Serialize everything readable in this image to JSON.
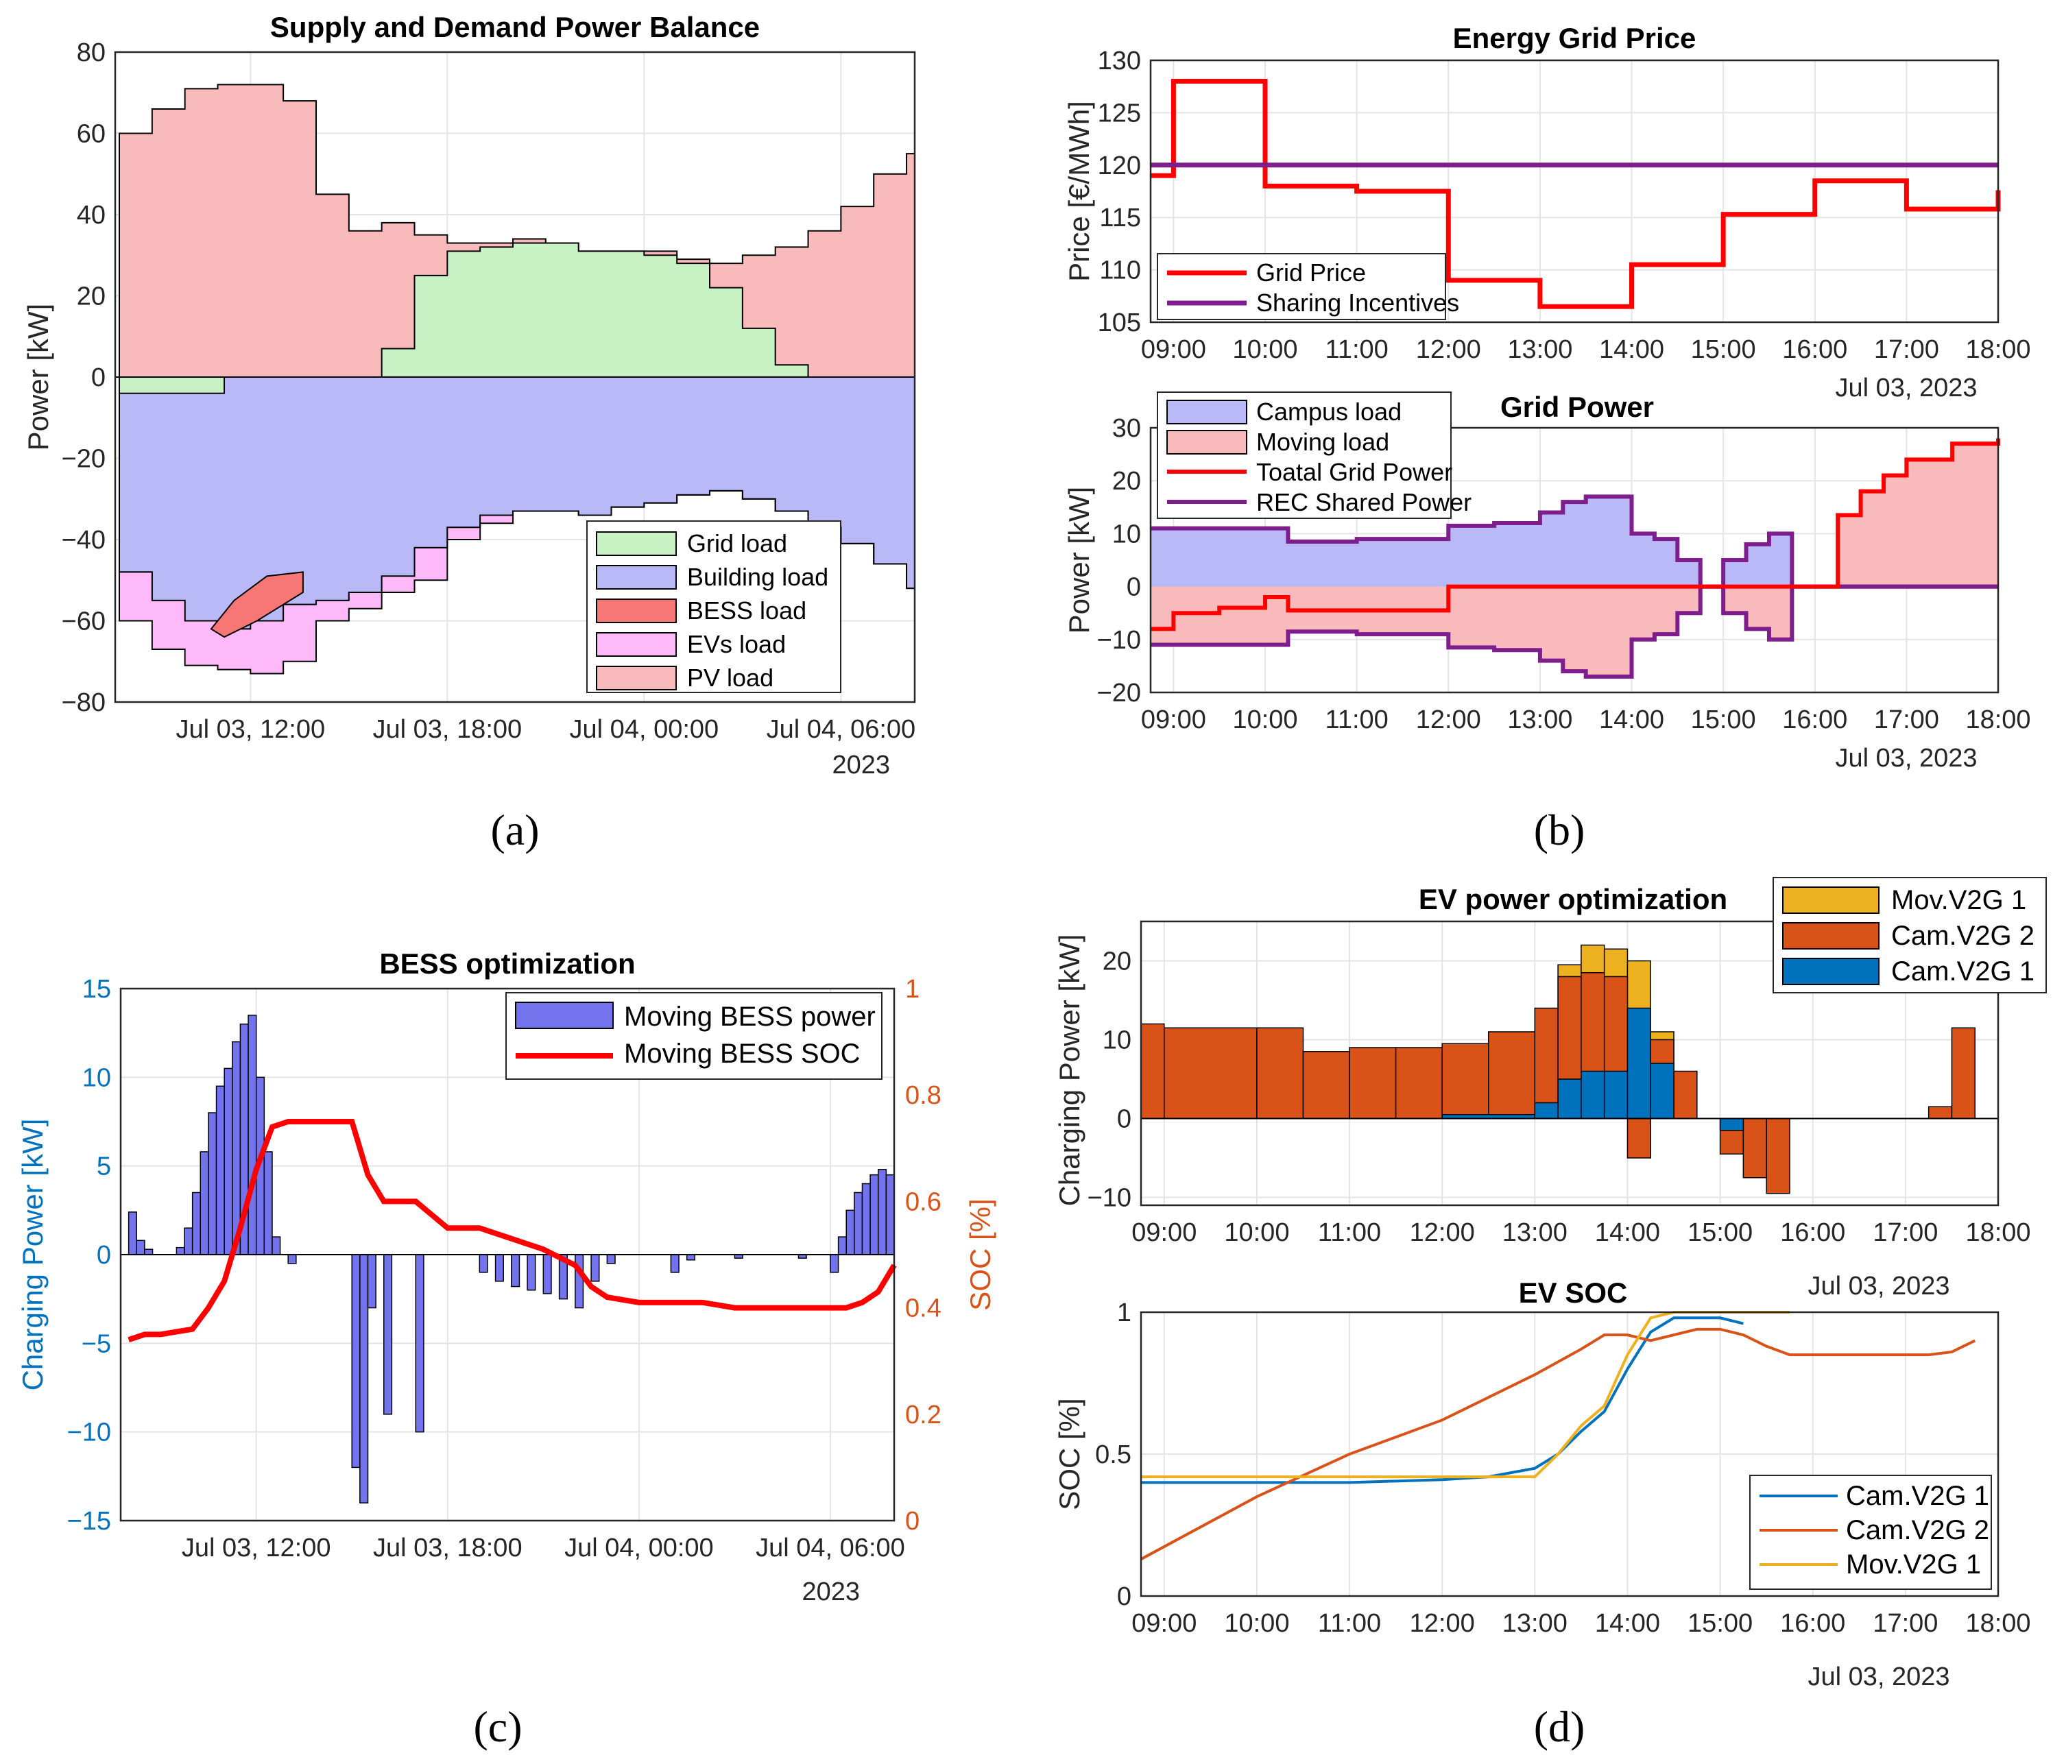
{
  "panels": {
    "a": "(a)",
    "b": "(b)",
    "c": "(c)",
    "d": "(d)"
  },
  "year_label": "2023",
  "date_label": "Jul 03, 2023",
  "chart_data": [
    {
      "id": "a",
      "type": "area",
      "title": "Supply and Demand Power Balance",
      "ylabel": "Power [kW]",
      "ylim": [
        -80,
        80
      ],
      "yticks": [
        "80",
        "60",
        "40",
        "20",
        "0",
        "−20",
        "−40",
        "−60",
        "−80"
      ],
      "xticks": [
        "Jul 03, 12:00",
        "Jul 03, 18:00",
        "Jul 04, 00:00",
        "Jul 04, 06:00"
      ],
      "x_hours": [
        8,
        9,
        10,
        11,
        12,
        13,
        14,
        15,
        16,
        17,
        18,
        19,
        20,
        21,
        22,
        23,
        24,
        25,
        26,
        27,
        28,
        29,
        30,
        31,
        32
      ],
      "legend": [
        "Grid load",
        "Building load",
        "BESS load",
        "EVs load",
        "PV load"
      ],
      "colors": {
        "grid": "#c8f2c4",
        "building": "#b9b9f8",
        "bess": "#f77676",
        "evs": "#fdb9f8",
        "pv": "#f8baba"
      },
      "series": [
        {
          "name": "PV load",
          "values": [
            60,
            66,
            71,
            72,
            72,
            68,
            45,
            36,
            38,
            35,
            33,
            33,
            34,
            33,
            31,
            31,
            31,
            29,
            28,
            30,
            32,
            36,
            42,
            50,
            55
          ]
        },
        {
          "name": "Grid load",
          "values": [
            0,
            0,
            0,
            0,
            0,
            0,
            0,
            0,
            7,
            25,
            31,
            32,
            33,
            33,
            31,
            31,
            30,
            28,
            22,
            12,
            3,
            0,
            0,
            0,
            0
          ]
        },
        {
          "name": "Building load",
          "values": [
            -48,
            -55,
            -60,
            -62,
            -60,
            -56,
            -55,
            -53,
            -49,
            -42,
            -37,
            -34,
            -33,
            -33,
            -34,
            -32,
            -31,
            -29,
            -28,
            -30,
            -33,
            -37,
            -41,
            -46,
            -52
          ]
        },
        {
          "name": "EVs load",
          "values": [
            -60,
            -67,
            -71,
            -72,
            -73,
            -70,
            -60,
            -57,
            -53,
            -50,
            -40,
            -36,
            -33,
            -33,
            -34,
            -32,
            -31,
            -29,
            -28,
            -30,
            -33,
            -37,
            -41,
            -46,
            -52
          ]
        }
      ]
    },
    {
      "id": "b1",
      "type": "line",
      "title": "Energy Grid Price",
      "ylabel": "Price [€/MWh]",
      "ylim": [
        105,
        130
      ],
      "yticks": [
        "130",
        "125",
        "120",
        "115",
        "110",
        "105"
      ],
      "xticks": [
        "09:00",
        "10:00",
        "11:00",
        "12:00",
        "13:00",
        "14:00",
        "15:00",
        "16:00",
        "17:00",
        "18:00"
      ],
      "legend": [
        "Grid Price",
        "Sharing Incentives"
      ],
      "series": [
        {
          "name": "Grid Price",
          "x": [
            8.75,
            9,
            10,
            10,
            11,
            11,
            12,
            12,
            13,
            13,
            14,
            14,
            15,
            15,
            16,
            16,
            17,
            17,
            18
          ],
          "values": [
            119,
            128,
            128,
            118,
            118,
            117.5,
            117.5,
            109,
            109,
            106.5,
            106.5,
            110.5,
            110.5,
            115.3,
            115.3,
            118.5,
            118.5,
            115.8,
            117.6
          ]
        },
        {
          "name": "Sharing Incentives",
          "x": [
            8.75,
            18
          ],
          "values": [
            120,
            120
          ]
        }
      ]
    },
    {
      "id": "b2",
      "type": "area",
      "title": "Grid Power",
      "ylabel": "Power [kW]",
      "ylim": [
        -20,
        30
      ],
      "yticks": [
        "30",
        "20",
        "10",
        "0",
        "−10",
        "−20"
      ],
      "xticks": [
        "09:00",
        "10:00",
        "11:00",
        "12:00",
        "13:00",
        "14:00",
        "15:00",
        "16:00",
        "17:00",
        "18:00"
      ],
      "legend": [
        "Campus load",
        "Moving load",
        "Toatal Grid Power",
        "REC Shared Power"
      ],
      "series": [
        {
          "name": "REC Shared Power",
          "x": [
            8.75,
            9,
            10,
            10.25,
            11,
            12,
            12.5,
            13,
            13.25,
            13.5,
            14,
            14.25,
            14.5,
            14.75,
            15,
            15.25,
            15.5,
            15.75,
            16,
            17,
            18
          ],
          "values": [
            11,
            11,
            11,
            8.5,
            9,
            11.5,
            12,
            14,
            16,
            17,
            10,
            9,
            5,
            0,
            5,
            8,
            10,
            0,
            0,
            0,
            0
          ]
        },
        {
          "name": "Toatal Grid Power",
          "x": [
            8.75,
            9,
            9.5,
            10,
            10.25,
            12,
            16,
            16.25,
            16.5,
            16.75,
            17,
            17.5,
            18
          ],
          "values": [
            -8,
            -5,
            -4,
            -2,
            -4.5,
            0,
            0,
            13.5,
            18,
            21,
            24,
            27,
            28
          ]
        }
      ]
    },
    {
      "id": "c",
      "type": "bar",
      "title": "BESS optimization",
      "ylabel": "Charging Power [kW]",
      "y2label": "SOC [%]",
      "ylim": [
        -15,
        15
      ],
      "y2lim": [
        0,
        1
      ],
      "yticks": [
        "15",
        "10",
        "5",
        "0",
        "−5",
        "−10",
        "−15"
      ],
      "y2ticks": [
        "1",
        "0.8",
        "0.6",
        "0.4",
        "0.2",
        "0"
      ],
      "xticks": [
        "Jul 03, 12:00",
        "Jul 03, 18:00",
        "Jul 04, 00:00",
        "Jul 04, 06:00"
      ],
      "legend": [
        "Moving BESS power",
        "Moving BESS SOC"
      ],
      "series": [
        {
          "name": "Moving BESS power",
          "x": [
            8,
            8.25,
            8.5,
            9.5,
            9.75,
            10,
            10.25,
            10.5,
            10.75,
            11,
            11.25,
            11.5,
            11.75,
            12,
            12.25,
            12.5,
            12.75,
            13,
            13.25,
            15,
            15.25,
            15.5,
            16,
            17,
            17.25,
            17.5,
            19,
            19.5,
            20,
            20.5,
            21,
            21.5,
            22,
            22.5,
            23,
            25,
            25.5,
            27,
            29,
            30,
            30.25,
            30.5,
            30.75,
            31,
            31.25,
            31.5,
            31.75
          ],
          "values": [
            2.4,
            0.8,
            0.3,
            0.4,
            1.5,
            3.5,
            5.8,
            8,
            9.5,
            10.5,
            12,
            13,
            13.5,
            10,
            5.8,
            1,
            0,
            -0.5,
            0,
            -12,
            -14,
            -3,
            -9,
            -10,
            0,
            0,
            -1,
            -1.5,
            -1.8,
            -2,
            -2.2,
            -2.5,
            -3,
            -1.5,
            -0.5,
            -1,
            -0.3,
            -0.2,
            -0.2,
            -1,
            1,
            2.5,
            3.5,
            4,
            4.5,
            4.8,
            4.5
          ]
        },
        {
          "name": "Moving BESS SOC",
          "x": [
            8,
            8.5,
            9,
            10,
            10.5,
            11,
            11.5,
            12,
            12.5,
            13,
            14,
            15,
            15.5,
            16,
            16.5,
            17,
            18,
            19,
            20,
            21,
            22,
            22.5,
            23,
            24,
            25,
            26,
            27,
            28,
            29,
            30,
            30.5,
            31,
            31.5,
            32
          ],
          "values": [
            0.34,
            0.35,
            0.35,
            0.36,
            0.4,
            0.45,
            0.55,
            0.66,
            0.74,
            0.75,
            0.75,
            0.75,
            0.65,
            0.6,
            0.6,
            0.6,
            0.55,
            0.55,
            0.53,
            0.51,
            0.48,
            0.44,
            0.42,
            0.41,
            0.41,
            0.41,
            0.4,
            0.4,
            0.4,
            0.4,
            0.4,
            0.41,
            0.43,
            0.48
          ]
        }
      ]
    },
    {
      "id": "d1",
      "type": "bar",
      "title": "EV power optimization",
      "ylabel": "Charging Power [kW]",
      "ylim": [
        -10,
        25
      ],
      "yticks": [
        "20",
        "10",
        "0",
        "−10"
      ],
      "xticks": [
        "09:00",
        "10:00",
        "11:00",
        "12:00",
        "13:00",
        "14:00",
        "15:00",
        "16:00",
        "17:00",
        "18:00"
      ],
      "legend": [
        "Mov.V2G 1",
        "Cam.V2G 2",
        "Cam.V2G 1"
      ],
      "series": [
        {
          "name": "Cam.V2G 1",
          "x": [
            8.75,
            12,
            13,
            13.25,
            13.5,
            13.75,
            14,
            14.25,
            14.5,
            15,
            15.25
          ],
          "values": [
            0,
            0.5,
            2,
            5,
            6,
            6,
            14,
            7,
            0,
            -1.5,
            0
          ]
        },
        {
          "name": "Cam.V2G 2",
          "x": [
            8.75,
            9,
            10,
            10.5,
            11,
            11.5,
            12,
            12.5,
            13,
            13.25,
            13.5,
            13.75,
            14,
            14.25,
            14.5,
            14.75,
            15,
            15.25,
            15.5,
            15.75,
            17.25,
            17.5
          ],
          "values": [
            12,
            11.5,
            11.5,
            8.5,
            9,
            9,
            9.5,
            11,
            14,
            18,
            18.5,
            18,
            -5,
            10,
            6,
            0,
            -4.5,
            -7.5,
            -9.5,
            0,
            1.5,
            11.5
          ]
        },
        {
          "name": "Mov.V2G 1",
          "x": [
            13.25,
            13.5,
            13.75,
            14,
            14.25
          ],
          "values": [
            19.5,
            22,
            21.5,
            20,
            11
          ]
        }
      ]
    },
    {
      "id": "d2",
      "type": "line",
      "title": "EV SOC",
      "ylabel": "SOC [%]",
      "ylim": [
        0,
        1
      ],
      "yticks": [
        "1",
        "0.5",
        "0"
      ],
      "xticks": [
        "09:00",
        "10:00",
        "11:00",
        "12:00",
        "13:00",
        "14:00",
        "15:00",
        "16:00",
        "17:00",
        "18:00"
      ],
      "legend": [
        "Cam.V2G 1",
        "Cam.V2G 2",
        "Mov.V2G 1"
      ],
      "series": [
        {
          "name": "Cam.V2G 1",
          "x": [
            8.75,
            10,
            11,
            12,
            12.5,
            13,
            13.25,
            13.5,
            13.75,
            14,
            14.25,
            14.5,
            15,
            15.25
          ],
          "values": [
            0.4,
            0.4,
            0.4,
            0.41,
            0.42,
            0.45,
            0.5,
            0.58,
            0.65,
            0.8,
            0.93,
            0.98,
            0.98,
            0.96
          ]
        },
        {
          "name": "Cam.V2G 2",
          "x": [
            8.75,
            10,
            11,
            12,
            12.5,
            13,
            13.5,
            13.75,
            14,
            14.25,
            14.5,
            14.75,
            15,
            15.25,
            15.5,
            15.75,
            16,
            17,
            17.25,
            17.5,
            17.75
          ],
          "values": [
            0.13,
            0.35,
            0.5,
            0.62,
            0.7,
            0.78,
            0.87,
            0.92,
            0.92,
            0.9,
            0.92,
            0.94,
            0.94,
            0.92,
            0.88,
            0.85,
            0.85,
            0.85,
            0.85,
            0.86,
            0.9
          ]
        },
        {
          "name": "Mov.V2G 1",
          "x": [
            8.75,
            10,
            11,
            12,
            13,
            13.25,
            13.5,
            13.75,
            14,
            14.25,
            14.5,
            15,
            15.5,
            15.75
          ],
          "values": [
            0.42,
            0.42,
            0.42,
            0.42,
            0.42,
            0.5,
            0.6,
            0.67,
            0.85,
            0.98,
            1,
            1,
            1,
            1
          ]
        }
      ]
    }
  ]
}
